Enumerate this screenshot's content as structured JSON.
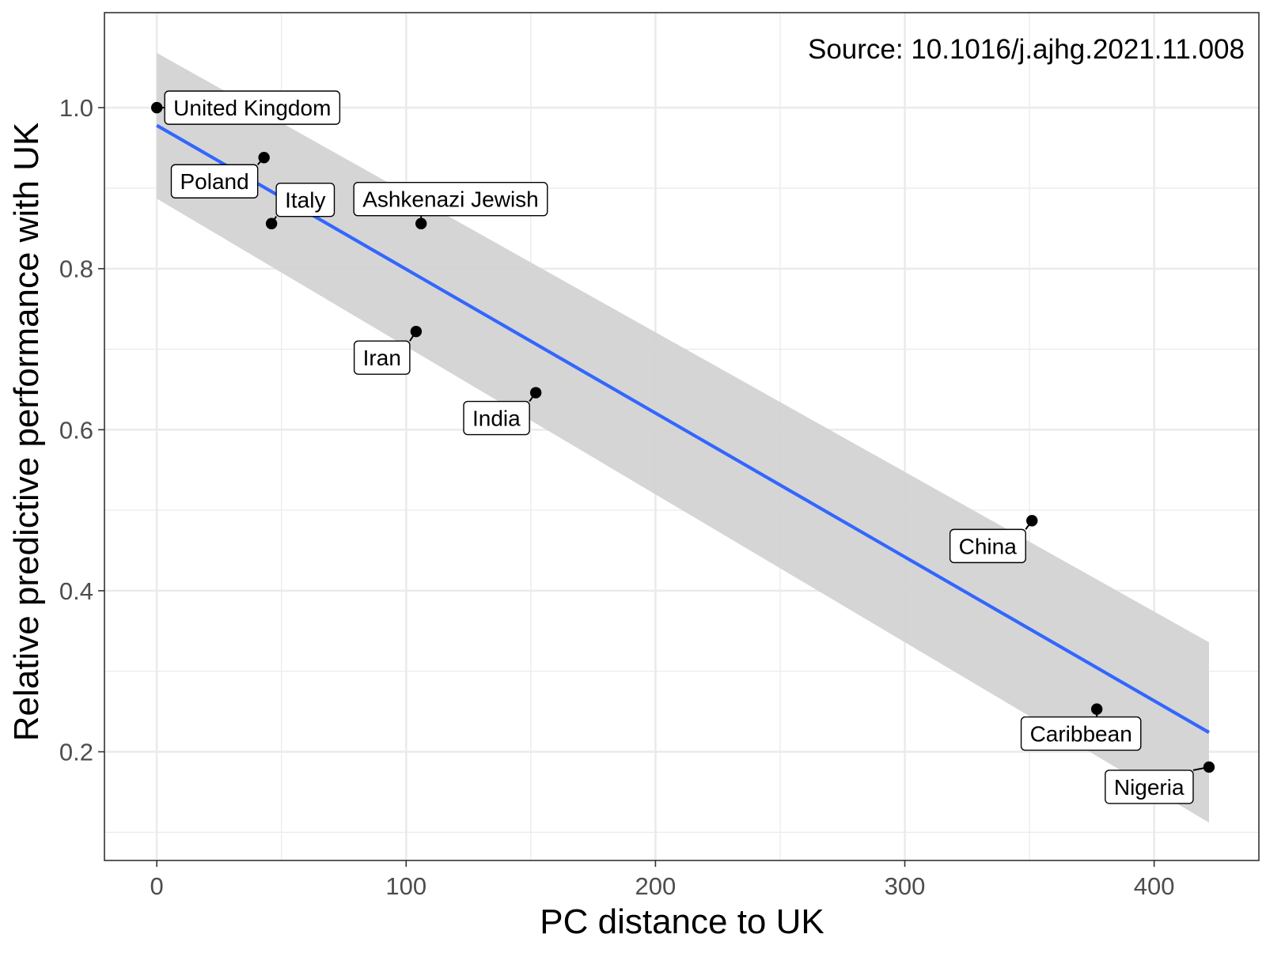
{
  "chart_data": {
    "type": "scatter",
    "title": "",
    "annotation": "Source: 10.1016/j.ajhg.2021.11.008",
    "xlabel": "PC distance to UK",
    "ylabel": "Relative predictive performance with UK",
    "xlim": [
      -21,
      442
    ],
    "ylim": [
      0.065,
      1.118
    ],
    "x_ticks": [
      0,
      100,
      200,
      300,
      400
    ],
    "x_tick_labels": [
      "0",
      "100",
      "200",
      "300",
      "400"
    ],
    "y_ticks": [
      0.2,
      0.4,
      0.6,
      0.8,
      1.0
    ],
    "y_tick_labels": [
      "0.2",
      "0.4",
      "0.6",
      "0.8",
      "1.0"
    ],
    "grid": true,
    "points": [
      {
        "label": "United Kingdom",
        "x": 0,
        "y": 1.0
      },
      {
        "label": "Poland",
        "x": 43,
        "y": 0.938
      },
      {
        "label": "Italy",
        "x": 46,
        "y": 0.856
      },
      {
        "label": "Ashkenazi Jewish",
        "x": 106,
        "y": 0.856
      },
      {
        "label": "Iran",
        "x": 104,
        "y": 0.722
      },
      {
        "label": "India",
        "x": 152,
        "y": 0.646
      },
      {
        "label": "China",
        "x": 351,
        "y": 0.487
      },
      {
        "label": "Caribbean",
        "x": 377,
        "y": 0.253
      },
      {
        "label": "Nigeria",
        "x": 422,
        "y": 0.181
      }
    ],
    "fit": {
      "type": "linear",
      "x_range": [
        0,
        422
      ],
      "y_start": 0.978,
      "y_end": 0.224,
      "ci_lower": [
        0.887,
        0.112
      ],
      "ci_upper": [
        1.068,
        0.336
      ]
    },
    "colors": {
      "line": "#3366ff",
      "ribbon": "#d3d3d3",
      "points": "#000000",
      "grid": "#ebebeb",
      "axis_text": "#4d4d4d"
    }
  }
}
